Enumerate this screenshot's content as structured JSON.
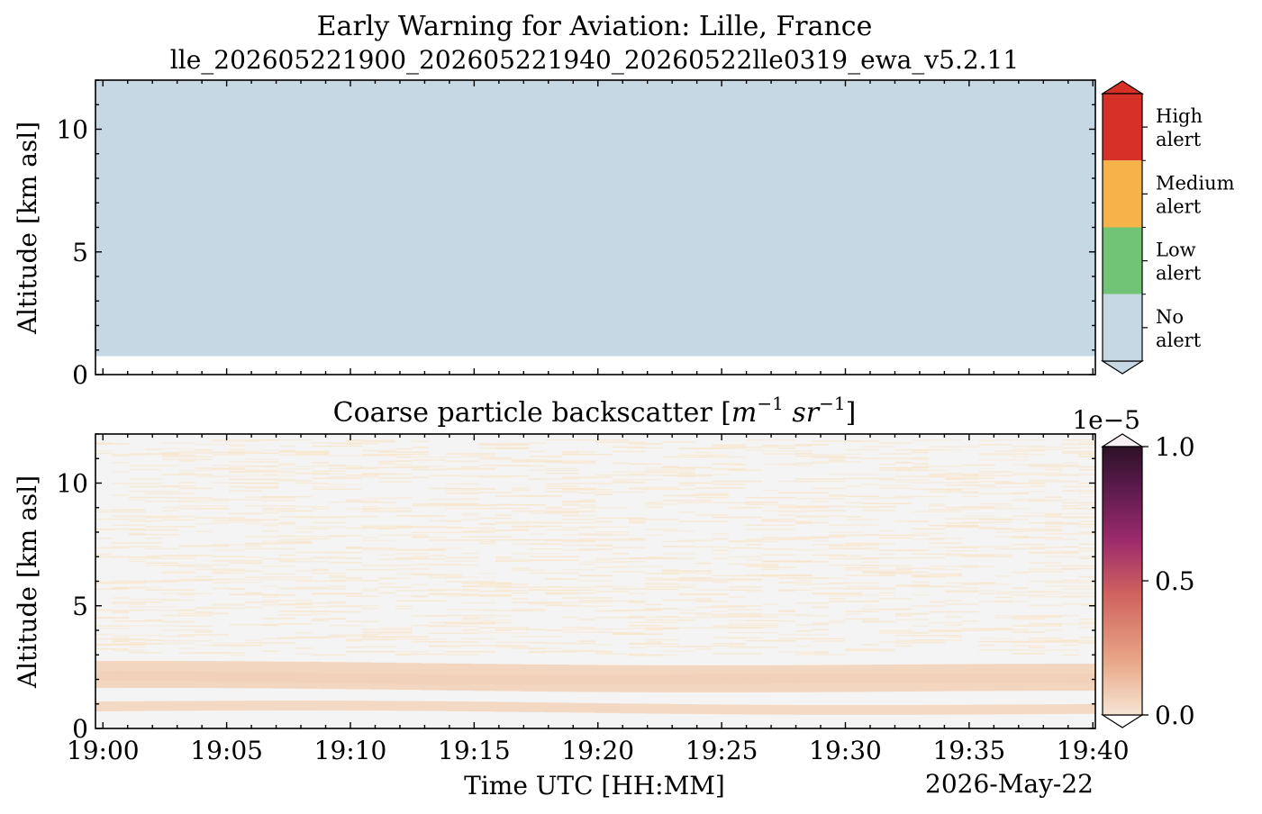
{
  "figure": {
    "title": "Early Warning for Aviation: Lille, France",
    "subtitle": "lle_202605221900_202605221940_20260522lle0319_ewa_v5.2.11"
  },
  "chart_data": [
    {
      "type": "heatmap",
      "name": "ewa-alert-panel",
      "xlabel": "",
      "ylabel": "Altitude [km asl]",
      "x_ticks": [
        "19:00",
        "19:05",
        "19:10",
        "19:15",
        "19:20",
        "19:25",
        "19:30",
        "19:35",
        "19:40"
      ],
      "y_ticks": [
        "0",
        "5",
        "10"
      ],
      "xlim": [
        "19:00",
        "19:40"
      ],
      "ylim": [
        0,
        12
      ],
      "x_range_minutes": [
        -0.3,
        40.1
      ],
      "colorbar": {
        "categories": [
          {
            "label": "High alert",
            "line1": "High",
            "line2": "alert",
            "color": "#d73027"
          },
          {
            "label": "Medium alert",
            "line1": "Medium",
            "line2": "alert",
            "color": "#f5b34a"
          },
          {
            "label": "Low alert",
            "line1": "Low",
            "line2": "alert",
            "color": "#71c475"
          },
          {
            "label": "No alert",
            "line1": "No",
            "line2": "alert",
            "color": "#c6d8e4"
          }
        ],
        "extend": "both"
      },
      "regions": [
        {
          "from_km": 0.75,
          "to_km": 12,
          "category": "No alert"
        }
      ]
    },
    {
      "type": "heatmap",
      "name": "coarse-backscatter-panel",
      "title_prefix": "Coarse particle backscatter [",
      "title_m": "m",
      "title_m_exp": "−1",
      "title_sr": "sr",
      "title_sr_exp": "−1",
      "title_suffix": "]",
      "xlabel": "Time UTC [HH:MM]",
      "ylabel": "Altitude [km asl]",
      "date_label": "2026-May-22",
      "x_ticks": [
        "19:00",
        "19:05",
        "19:10",
        "19:15",
        "19:20",
        "19:25",
        "19:30",
        "19:35",
        "19:40"
      ],
      "y_ticks": [
        "0",
        "5",
        "10"
      ],
      "ylim": [
        0,
        12
      ],
      "colorbar": {
        "offset_label": "1e−5",
        "ticks": [
          "0.0",
          "0.5",
          "1.0"
        ],
        "range": [
          0,
          1.0
        ],
        "extend": "both",
        "colors": [
          "#f6e6d2",
          "#e8a788",
          "#d0625e",
          "#9c2b6c",
          "#5a1a4c",
          "#2d1226"
        ]
      },
      "layers": [
        {
          "from_km": 0.7,
          "to_km": 1.1,
          "level": 0.04
        },
        {
          "from_km": 1.6,
          "to_km": 2.7,
          "level": 0.05
        },
        {
          "from_km": 1.9,
          "to_km": 2.3,
          "level": 0.08
        }
      ],
      "noise_region_km": [
        3.0,
        11.8
      ],
      "background_color": "#f4f4f4"
    }
  ]
}
